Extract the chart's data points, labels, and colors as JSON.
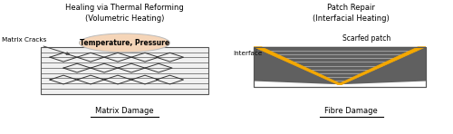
{
  "title_left": "Healing via Thermal Reforming\n(Volumetric Heating)",
  "title_right": "Patch Repair\n(Interfacial Heating)",
  "label_matrix_cracks": "Matrix Cracks",
  "label_interface": "Interface",
  "label_scarfed": "Scarfed patch",
  "label_temp_pressure": "Temperature, Pressure",
  "caption_left": "Matrix Damage",
  "caption_right": "Fibre Damage",
  "bg_color": "#ffffff",
  "ellipse_fill": "#f5d5b8",
  "ellipse_edge": "#bbbbbb",
  "rect_fill": "#e8e8e8",
  "rect_edge": "#555555",
  "dark_gray": "#555555",
  "gold_color": "#F5A800",
  "stripe_light": "#aaaaaa",
  "dark_fill": "#606060",
  "crack_color": "#333333"
}
